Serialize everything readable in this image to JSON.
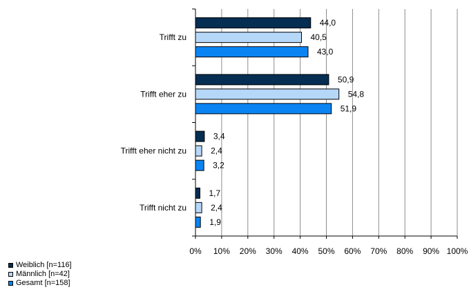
{
  "chart_data": {
    "type": "bar",
    "orientation": "horizontal",
    "categories": [
      "Trifft zu",
      "Trifft eher zu",
      "Trifft eher nicht zu",
      "Trifft nicht zu"
    ],
    "series": [
      {
        "name": "Weiblich [n=116]",
        "color": "#062d52",
        "values": [
          44.0,
          50.9,
          3.4,
          1.7
        ],
        "labels": [
          "44,0",
          "50,9",
          "3,4",
          "1,7"
        ]
      },
      {
        "name": "Männlich [n=42]",
        "color": "#b5d7f8",
        "values": [
          40.5,
          54.8,
          2.4,
          2.4
        ],
        "labels": [
          "40,5",
          "54,8",
          "2,4",
          "2,4"
        ]
      },
      {
        "name": "Gesamt [n=158]",
        "color": "#0a84f3",
        "values": [
          43.0,
          51.9,
          3.2,
          1.9
        ],
        "labels": [
          "43,0",
          "51,9",
          "3,2",
          "1,9"
        ]
      }
    ],
    "xlim": [
      0,
      100
    ],
    "x_ticks": [
      "0%",
      "10%",
      "20%",
      "30%",
      "40%",
      "50%",
      "60%",
      "70%",
      "80%",
      "90%",
      "100%"
    ],
    "grid": true,
    "legend_position": "bottom-left"
  }
}
